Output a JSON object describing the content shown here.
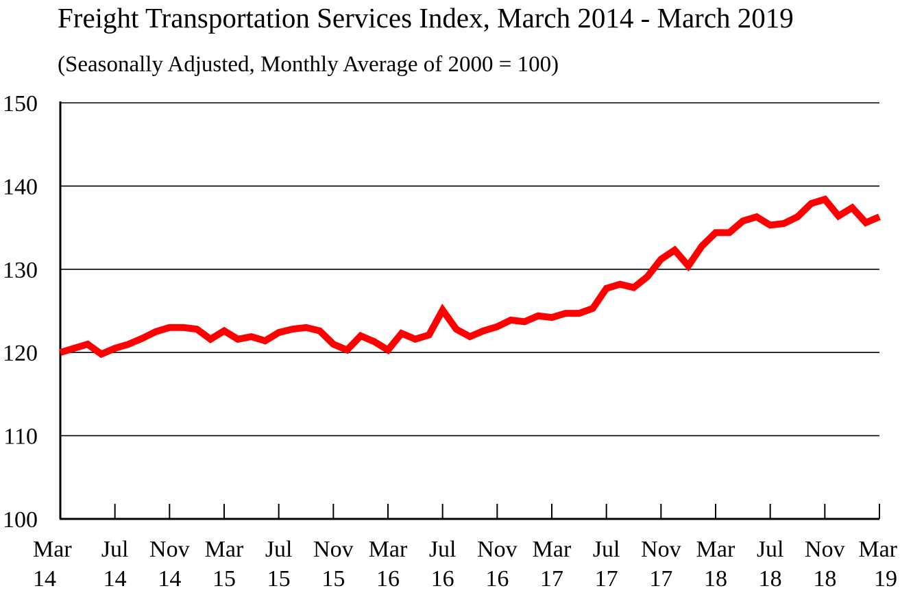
{
  "chart_data": {
    "type": "line",
    "title": "Freight Transportation Services Index, March 2014 - March 2019",
    "subtitle": "(Seasonally Adjusted, Monthly Average of 2000 = 100)",
    "xlabel": "",
    "ylabel": "",
    "ylim": [
      100,
      150
    ],
    "yticks": [
      "100",
      "110",
      "120",
      "130",
      "140",
      "150"
    ],
    "grid": true,
    "line_color": "#ff0000",
    "x_tick_labels": [
      {
        "month": "Mar",
        "year": "14"
      },
      {
        "month": "Jul",
        "year": "14"
      },
      {
        "month": "Nov",
        "year": "14"
      },
      {
        "month": "Mar",
        "year": "15"
      },
      {
        "month": "Jul",
        "year": "15"
      },
      {
        "month": "Nov",
        "year": "15"
      },
      {
        "month": "Mar",
        "year": "16"
      },
      {
        "month": "Jul",
        "year": "16"
      },
      {
        "month": "Nov",
        "year": "16"
      },
      {
        "month": "Mar",
        "year": "17"
      },
      {
        "month": "Jul",
        "year": "17"
      },
      {
        "month": "Nov",
        "year": "17"
      },
      {
        "month": "Mar",
        "year": "18"
      },
      {
        "month": "Jul",
        "year": "18"
      },
      {
        "month": "Nov",
        "year": "18"
      },
      {
        "month": "Mar",
        "year": "19"
      }
    ],
    "series": [
      {
        "name": "Freight Transportation Services Index",
        "values": [
          120.0,
          120.5,
          121.0,
          119.8,
          120.5,
          121.0,
          121.7,
          122.5,
          123.0,
          123.0,
          122.8,
          121.6,
          122.6,
          121.6,
          121.9,
          121.4,
          122.4,
          122.8,
          123.0,
          122.6,
          121.0,
          120.3,
          122.0,
          121.3,
          120.3,
          122.3,
          121.6,
          122.1,
          125.1,
          122.8,
          121.9,
          122.6,
          123.1,
          123.9,
          123.7,
          124.4,
          124.2,
          124.7,
          124.7,
          125.3,
          127.7,
          128.2,
          127.8,
          129.1,
          131.2,
          132.3,
          130.4,
          132.8,
          134.4,
          134.4,
          135.8,
          136.3,
          135.3,
          135.5,
          136.3,
          137.9,
          138.4,
          136.4,
          137.4,
          135.6,
          136.3
        ]
      }
    ]
  }
}
